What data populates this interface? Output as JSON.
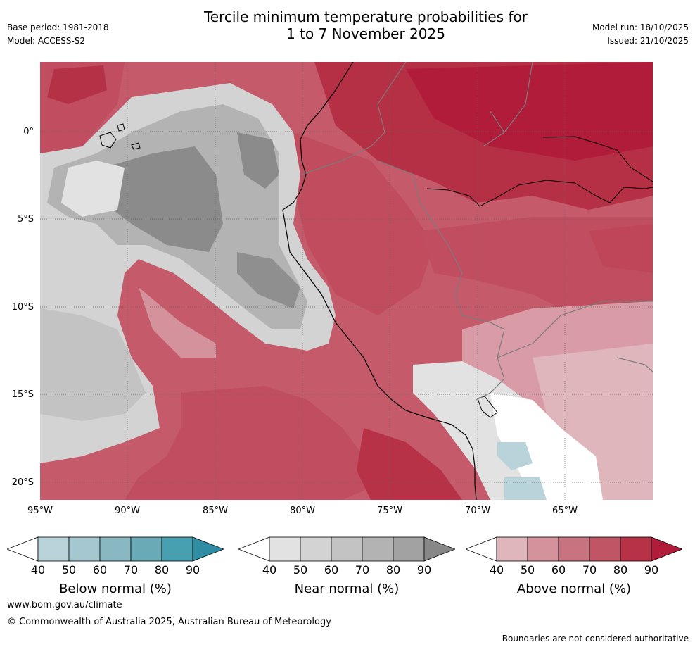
{
  "header": {
    "title_line1": "Tercile minimum temperature probabilities for",
    "title_line2": "1 to 7 November 2025",
    "base_period": "Base period: 1981-2018",
    "model": "Model: ACCESS-S2",
    "model_run": "Model run: 18/10/2025",
    "issued": "Issued: 21/10/2025"
  },
  "map": {
    "lat_labels": [
      "0°",
      "5°S",
      "10°S",
      "15°S",
      "20°S"
    ],
    "lon_labels": [
      "95°W",
      "90°W",
      "85°W",
      "80°W",
      "75°W",
      "70°W",
      "65°W"
    ]
  },
  "legends": [
    {
      "title": "Below normal (%)",
      "ticks": [
        "40",
        "50",
        "60",
        "70",
        "80",
        "90"
      ],
      "colors": [
        "#ffffff",
        "#b9d3da",
        "#a5c8d0",
        "#89b8c3",
        "#6aa9b6",
        "#46a0b0",
        "#2e8da2"
      ]
    },
    {
      "title": "Near normal (%)",
      "ticks": [
        "40",
        "50",
        "60",
        "70",
        "80",
        "90"
      ],
      "colors": [
        "#ffffff",
        "#e2e2e2",
        "#d3d3d3",
        "#c3c3c3",
        "#b3b3b3",
        "#a2a2a2",
        "#878787"
      ]
    },
    {
      "title": "Above normal (%)",
      "ticks": [
        "40",
        "50",
        "60",
        "70",
        "80",
        "90"
      ],
      "colors": [
        "#ffffff",
        "#e0b6bd",
        "#d4929d",
        "#c87480",
        "#bf5565",
        "#b73147",
        "#b01c3a"
      ]
    }
  ],
  "footer": {
    "website": "www.bom.gov.au/climate",
    "copyright": "© Commonwealth of Australia 2025, Australian Bureau of Meteorology",
    "disclaimer": "Boundaries are not considered authoritative"
  }
}
